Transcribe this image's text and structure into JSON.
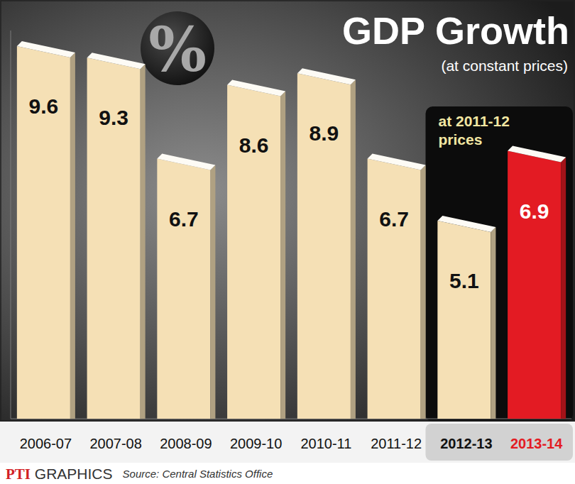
{
  "chart_data": {
    "type": "bar",
    "title": "GDP Growth",
    "subtitle": "(at constant prices)",
    "ylabel": "%",
    "categories": [
      "2006-07",
      "2007-08",
      "2008-09",
      "2009-10",
      "2010-11",
      "2011-12",
      "2012-13",
      "2013-14"
    ],
    "values": [
      9.6,
      9.3,
      6.7,
      8.6,
      8.9,
      6.7,
      5.1,
      6.9
    ],
    "colors": [
      "#f5e0b5",
      "#f5e0b5",
      "#f5e0b5",
      "#f5e0b5",
      "#f5e0b5",
      "#f5e0b5",
      "#f5e0b5",
      "#e31b23"
    ],
    "ylim": [
      0,
      10
    ],
    "grid": false,
    "data_labels": true,
    "tick_labels": "x",
    "annotations": [
      {
        "text": "at 2011-12 prices",
        "from": "2012-13",
        "to": "2013-14"
      }
    ],
    "source": "Source: Central Statistics Office",
    "credit": "PTI GRAPHICS"
  }
}
